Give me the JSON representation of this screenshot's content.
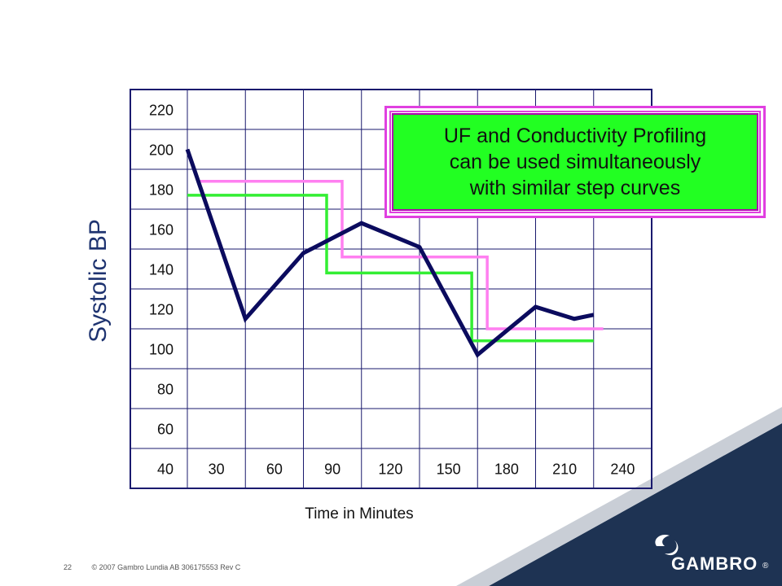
{
  "footer": {
    "page_number": "22",
    "copyright": "© 2007 Gambro Lundia AB 306175553 Rev C"
  },
  "logo": {
    "text": "GAMBRO",
    "registered": "®"
  },
  "callout": {
    "text": "UF and Conductivity Profiling\ncan be used simultaneously\nwith similar step curves"
  },
  "colors": {
    "bp_line": "#0b0b5e",
    "uf_step": "#ff7ff0",
    "conductivity_step": "#33ee33",
    "grid": "#1a1a6e",
    "corner_band": "#1e3353"
  },
  "chart_data": {
    "type": "line",
    "title": "",
    "ylabel": "Systolic BP",
    "xlabel": "Time in Minutes",
    "y_ticks": [
      "220",
      "200",
      "180",
      "160",
      "140",
      "120",
      "100",
      "80",
      "60",
      "40"
    ],
    "x_ticks": [
      "30",
      "60",
      "90",
      "120",
      "150",
      "180",
      "210",
      "240"
    ],
    "ylim": [
      40,
      220
    ],
    "xlim": [
      30,
      240
    ],
    "grid": true,
    "series": [
      {
        "type": "line",
        "x": [
          30,
          60,
          90,
          120,
          150,
          180,
          210,
          230,
          240
        ],
        "y": [
          200,
          115,
          148,
          163,
          151,
          97,
          121,
          115,
          117
        ]
      },
      {
        "type": "step",
        "x": [
          35,
          110,
          110,
          185,
          185,
          245
        ],
        "y": [
          184,
          184,
          146,
          146,
          110,
          110
        ]
      },
      {
        "type": "step",
        "x": [
          30,
          102,
          102,
          177,
          177,
          240
        ],
        "y": [
          177,
          177,
          138,
          138,
          104,
          104
        ]
      }
    ]
  }
}
